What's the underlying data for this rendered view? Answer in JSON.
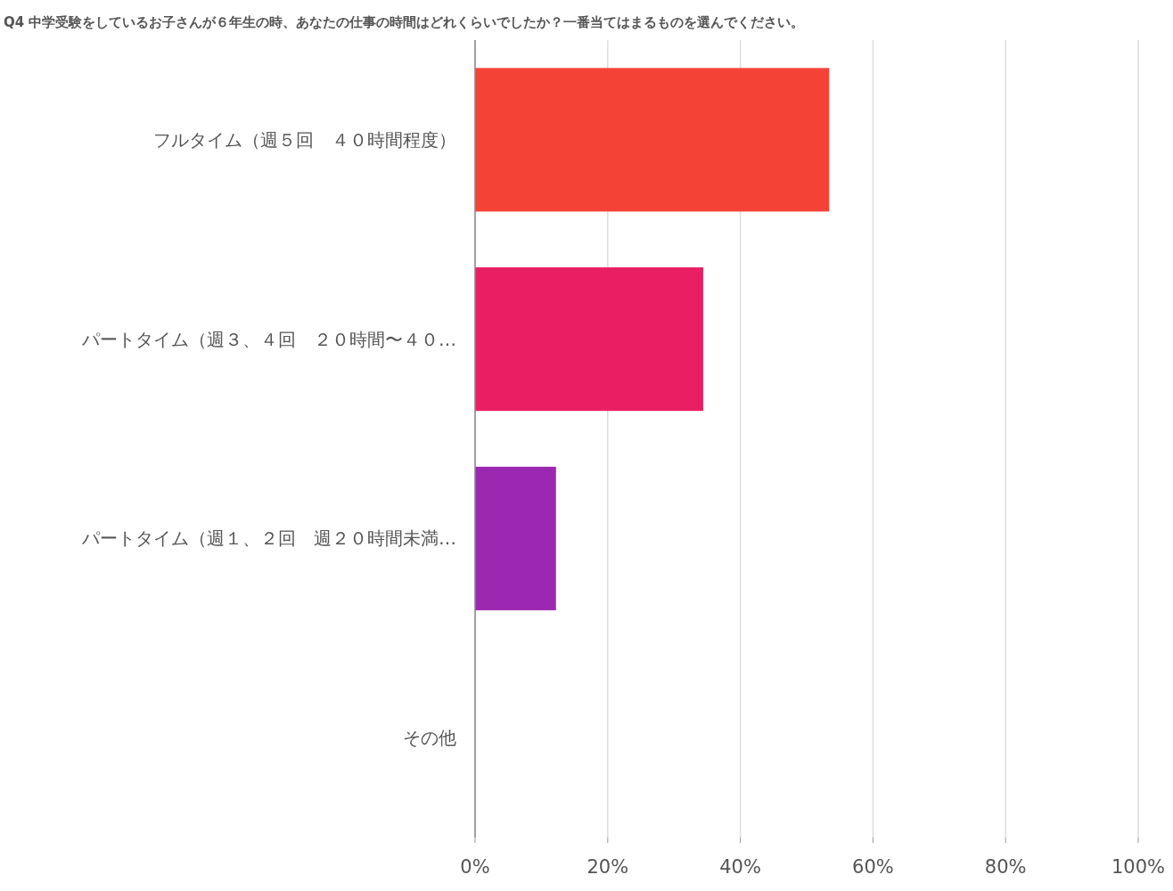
{
  "chart_data": {
    "type": "bar",
    "orientation": "horizontal",
    "title": "Q4 中学受験をしているお子さんが６年生の時、あなたの仕事の時間はどれくらいでしたか？一番当てはまるものを選んでください。",
    "categories": [
      "フルタイム（週５回　４０時間程度）",
      "パートタイム（週３、４回　２０時間〜４０…",
      "パートタイム（週１、２回　週２０時間未満…",
      "その他"
    ],
    "values": [
      53.4,
      34.4,
      12.2,
      0
    ],
    "colors": [
      "#f44336",
      "#e91e63",
      "#9c27b0",
      "#673ab7"
    ],
    "xlim": [
      0,
      100
    ],
    "xticks": [
      {
        "value": 0,
        "label": "0%"
      },
      {
        "value": 20,
        "label": "20%"
      },
      {
        "value": 40,
        "label": "40%"
      },
      {
        "value": 60,
        "label": "60%"
      },
      {
        "value": 80,
        "label": "80%"
      },
      {
        "value": 100,
        "label": "100%"
      }
    ],
    "grid": "x"
  }
}
